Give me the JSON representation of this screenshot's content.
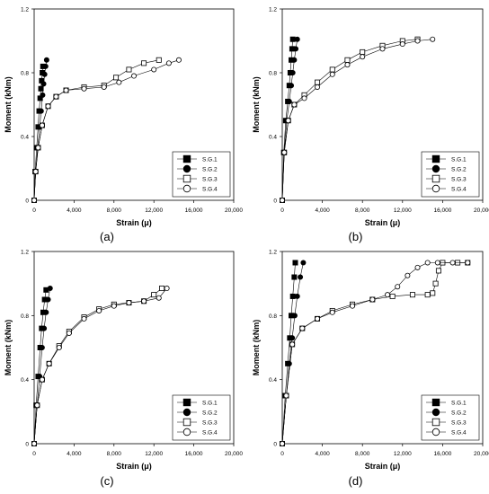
{
  "chart_data": [
    {
      "type": "scatter",
      "panel_label": "(a)",
      "xlabel": "Strain (μ)",
      "ylabel": "Moment (kNm)",
      "xlim": [
        0,
        20000
      ],
      "ylim": [
        0,
        1.2
      ],
      "xticks": [
        0,
        4000,
        8000,
        12000,
        16000,
        20000
      ],
      "xtick_labels": [
        "0",
        "4,000",
        "8,000",
        "12,000",
        "16,000",
        "20,000"
      ],
      "yticks": [
        0,
        0.4,
        0.8,
        1.2
      ],
      "ytick_labels": [
        "0",
        "0.4",
        "0.8",
        "1.2"
      ],
      "legend_position": "bottom-right",
      "series": [
        {
          "name": "S.G.1",
          "marker": "filled-square",
          "x": [
            0,
            100,
            250,
            400,
            500,
            600,
            680,
            750,
            820,
            880
          ],
          "y": [
            0,
            0.18,
            0.33,
            0.46,
            0.56,
            0.64,
            0.7,
            0.75,
            0.8,
            0.84
          ]
        },
        {
          "name": "S.G.2",
          "marker": "filled-circle",
          "x": [
            0,
            150,
            350,
            550,
            700,
            850,
            950,
            1050,
            1150,
            1250
          ],
          "y": [
            0,
            0.18,
            0.33,
            0.46,
            0.56,
            0.66,
            0.73,
            0.79,
            0.84,
            0.88
          ]
        },
        {
          "name": "S.G.3",
          "marker": "open-square",
          "x": [
            0,
            150,
            400,
            800,
            1400,
            2200,
            3200,
            5000,
            7000,
            8200,
            9500,
            11000,
            12500
          ],
          "y": [
            0,
            0.18,
            0.33,
            0.47,
            0.59,
            0.65,
            0.69,
            0.71,
            0.72,
            0.77,
            0.82,
            0.86,
            0.88
          ]
        },
        {
          "name": "S.G.4",
          "marker": "open-circle",
          "x": [
            0,
            150,
            400,
            800,
            1400,
            2200,
            3200,
            5000,
            7000,
            8500,
            10000,
            12000,
            13500,
            14500
          ],
          "y": [
            0,
            0.18,
            0.33,
            0.47,
            0.59,
            0.65,
            0.69,
            0.7,
            0.71,
            0.74,
            0.78,
            0.82,
            0.86,
            0.88
          ]
        }
      ]
    },
    {
      "type": "scatter",
      "panel_label": "(b)",
      "xlabel": "Strain (μ)",
      "ylabel": "Moment (kNm)",
      "xlim": [
        0,
        20000
      ],
      "ylim": [
        0,
        1.2
      ],
      "xticks": [
        0,
        4000,
        8000,
        12000,
        16000,
        20000
      ],
      "xtick_labels": [
        "0",
        "4,000",
        "8,000",
        "12,000",
        "16,000",
        "20,000"
      ],
      "yticks": [
        0,
        0.4,
        0.8,
        1.2
      ],
      "ytick_labels": [
        "0",
        "0.4",
        "0.8",
        "1.2"
      ],
      "legend_position": "bottom-right",
      "series": [
        {
          "name": "S.G.1",
          "marker": "filled-square",
          "x": [
            0,
            150,
            350,
            550,
            700,
            800,
            900,
            980,
            1050
          ],
          "y": [
            0,
            0.3,
            0.5,
            0.62,
            0.72,
            0.8,
            0.88,
            0.95,
            1.01
          ]
        },
        {
          "name": "S.G.2",
          "marker": "filled-circle",
          "x": [
            0,
            200,
            450,
            700,
            900,
            1050,
            1200,
            1350,
            1500
          ],
          "y": [
            0,
            0.3,
            0.5,
            0.62,
            0.72,
            0.8,
            0.88,
            0.95,
            1.01
          ]
        },
        {
          "name": "S.G.3",
          "marker": "open-square",
          "x": [
            0,
            200,
            600,
            1200,
            2200,
            3500,
            5000,
            6500,
            8000,
            10000,
            12000,
            13500
          ],
          "y": [
            0,
            0.3,
            0.5,
            0.6,
            0.66,
            0.74,
            0.82,
            0.88,
            0.93,
            0.97,
            1.0,
            1.01
          ]
        },
        {
          "name": "S.G.4",
          "marker": "open-circle",
          "x": [
            0,
            200,
            600,
            1200,
            2200,
            3500,
            5000,
            6500,
            8000,
            10000,
            12000,
            13500,
            15000
          ],
          "y": [
            0,
            0.3,
            0.5,
            0.6,
            0.64,
            0.71,
            0.79,
            0.85,
            0.9,
            0.95,
            0.98,
            1.0,
            1.01
          ]
        }
      ]
    },
    {
      "type": "scatter",
      "panel_label": "(c)",
      "xlabel": "Strain (μ)",
      "ylabel": "Moment (kNm)",
      "xlim": [
        0,
        20000
      ],
      "ylim": [
        0,
        1.2
      ],
      "xticks": [
        0,
        4000,
        8000,
        12000,
        16000,
        20000
      ],
      "xtick_labels": [
        "0",
        "4,000",
        "8,000",
        "12,000",
        "16,000",
        "20,000"
      ],
      "yticks": [
        0,
        0.4,
        0.8,
        1.2
      ],
      "ytick_labels": [
        "0",
        "0.4",
        "0.8",
        "1.2"
      ],
      "legend_position": "bottom-right",
      "series": [
        {
          "name": "S.G.1",
          "marker": "filled-square",
          "x": [
            0,
            200,
            400,
            600,
            750,
            900,
            1050,
            1200
          ],
          "y": [
            0,
            0.24,
            0.42,
            0.6,
            0.72,
            0.82,
            0.9,
            0.96
          ]
        },
        {
          "name": "S.G.2",
          "marker": "filled-circle",
          "x": [
            0,
            300,
            550,
            800,
            1000,
            1200,
            1400,
            1600
          ],
          "y": [
            0,
            0.24,
            0.42,
            0.6,
            0.72,
            0.82,
            0.9,
            0.97
          ]
        },
        {
          "name": "S.G.3",
          "marker": "open-square",
          "x": [
            0,
            300,
            800,
            1500,
            2500,
            3500,
            5000,
            6500,
            8000,
            9500,
            11000,
            12000,
            12800
          ],
          "y": [
            0,
            0.24,
            0.4,
            0.5,
            0.61,
            0.7,
            0.79,
            0.84,
            0.87,
            0.88,
            0.89,
            0.93,
            0.97
          ]
        },
        {
          "name": "S.G.4",
          "marker": "open-circle",
          "x": [
            0,
            300,
            800,
            1500,
            2500,
            3500,
            5000,
            6500,
            8000,
            9500,
            11000,
            12500,
            13300
          ],
          "y": [
            0,
            0.24,
            0.4,
            0.5,
            0.6,
            0.69,
            0.78,
            0.83,
            0.86,
            0.88,
            0.89,
            0.91,
            0.97
          ]
        }
      ]
    },
    {
      "type": "scatter",
      "panel_label": "(d)",
      "xlabel": "Strain (μ)",
      "ylabel": "Moment (kNm)",
      "xlim": [
        0,
        20000
      ],
      "ylim": [
        0,
        1.2
      ],
      "xticks": [
        0,
        4000,
        8000,
        12000,
        16000,
        20000
      ],
      "xtick_labels": [
        "0",
        "4,000",
        "8,000",
        "12,000",
        "16,000",
        "20,000"
      ],
      "yticks": [
        0,
        0.4,
        0.8,
        1.2
      ],
      "ytick_labels": [
        "0",
        "0.4",
        "0.8",
        "1.2"
      ],
      "legend_position": "bottom-right",
      "series": [
        {
          "name": "S.G.1",
          "marker": "filled-square",
          "x": [
            0,
            300,
            550,
            750,
            900,
            1050,
            1200,
            1300
          ],
          "y": [
            0,
            0.3,
            0.5,
            0.66,
            0.8,
            0.92,
            1.04,
            1.13
          ]
        },
        {
          "name": "S.G.2",
          "marker": "filled-circle",
          "x": [
            0,
            400,
            700,
            1000,
            1250,
            1500,
            1800,
            2100
          ],
          "y": [
            0,
            0.3,
            0.5,
            0.66,
            0.8,
            0.92,
            1.04,
            1.13
          ]
        },
        {
          "name": "S.G.3",
          "marker": "open-square",
          "x": [
            0,
            400,
            1000,
            2000,
            3500,
            5000,
            7000,
            9000,
            11000,
            13000,
            14500,
            15000,
            15300,
            15600,
            16000,
            17500,
            18500
          ],
          "y": [
            0,
            0.3,
            0.62,
            0.72,
            0.78,
            0.83,
            0.87,
            0.9,
            0.92,
            0.93,
            0.93,
            0.94,
            1.0,
            1.08,
            1.13,
            1.13,
            1.13
          ]
        },
        {
          "name": "S.G.4",
          "marker": "open-circle",
          "x": [
            0,
            400,
            1000,
            2000,
            3500,
            5000,
            7000,
            9000,
            10500,
            11500,
            12500,
            13500,
            14500,
            15500,
            17000,
            18500
          ],
          "y": [
            0,
            0.3,
            0.62,
            0.72,
            0.78,
            0.82,
            0.86,
            0.9,
            0.93,
            0.98,
            1.05,
            1.1,
            1.13,
            1.13,
            1.13,
            1.13
          ]
        }
      ]
    }
  ]
}
